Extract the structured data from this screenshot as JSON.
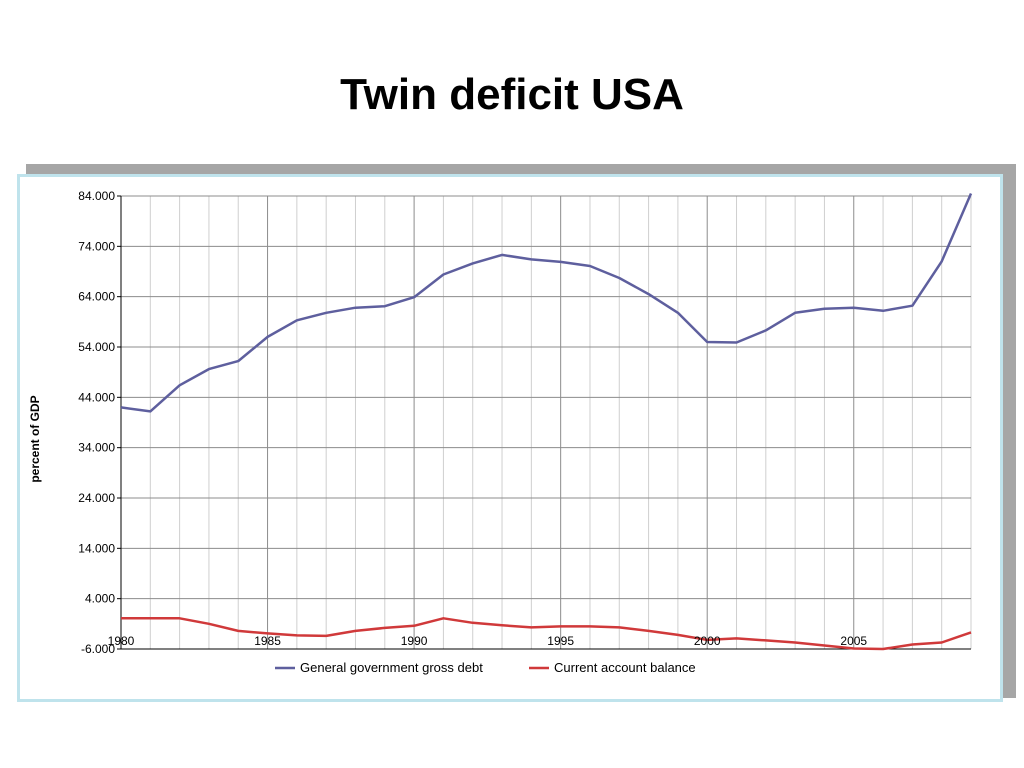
{
  "slide": {
    "title": "Twin deficit USA"
  },
  "chart_data": {
    "type": "line",
    "title": "",
    "xlabel": "",
    "ylabel": "percent of GDP",
    "x": [
      1980,
      1981,
      1982,
      1983,
      1984,
      1985,
      1986,
      1987,
      1988,
      1989,
      1990,
      1991,
      1992,
      1993,
      1994,
      1995,
      1996,
      1997,
      1998,
      1999,
      2000,
      2001,
      2002,
      2003,
      2004,
      2005,
      2006,
      2007,
      2008,
      2009
    ],
    "x_tick_labels": [
      "1980",
      "1985",
      "1990",
      "1995",
      "2000",
      "2005"
    ],
    "x_tick_values": [
      1980,
      1985,
      1990,
      1995,
      2000,
      2005
    ],
    "y_tick_labels": [
      "84.000",
      "74.000",
      "64.000",
      "54.000",
      "44.000",
      "34.000",
      "24.000",
      "14.000",
      "4.000",
      "-6.000"
    ],
    "ylim": [
      -6,
      84
    ],
    "grid": true,
    "legend_position": "bottom",
    "series": [
      {
        "name": "General government gross debt",
        "color": "#5e5f9e",
        "values": [
          42.0,
          41.2,
          46.4,
          49.6,
          51.2,
          56.0,
          59.3,
          60.8,
          61.8,
          62.1,
          63.9,
          68.4,
          70.6,
          72.3,
          71.4,
          70.9,
          70.1,
          67.7,
          64.5,
          60.8,
          55.0,
          54.9,
          57.3,
          60.8,
          61.6,
          61.8,
          61.2,
          62.2,
          71.0,
          84.5
        ]
      },
      {
        "name": "Current account balance",
        "color": "#d0393a",
        "values": [
          0.1,
          0.1,
          0.1,
          -1.0,
          -2.4,
          -2.9,
          -3.3,
          -3.4,
          -2.4,
          -1.8,
          -1.4,
          0.1,
          -0.8,
          -1.3,
          -1.7,
          -1.5,
          -1.5,
          -1.7,
          -2.4,
          -3.2,
          -4.2,
          -3.9,
          -4.3,
          -4.7,
          -5.3,
          -5.9,
          -6.0,
          -5.1,
          -4.7,
          -2.7
        ]
      }
    ]
  }
}
